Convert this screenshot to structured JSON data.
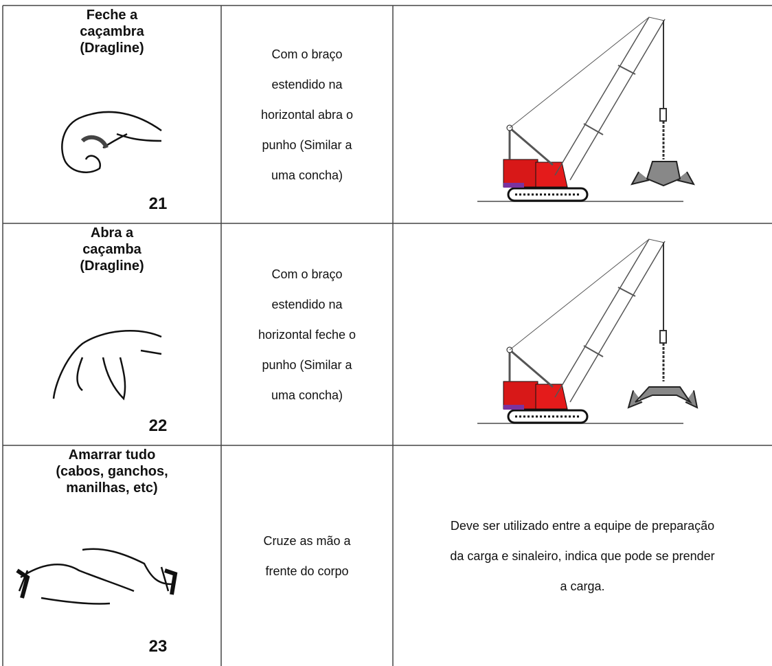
{
  "table": {
    "rows": [
      {
        "title_lines": [
          "Feche a",
          "caçambra",
          "(Dragline)"
        ],
        "number": "21",
        "description_lines": [
          "Com o braço",
          "estendido na",
          "horizontal abra o",
          "punho (Similar a",
          "uma concha)"
        ]
      },
      {
        "title_lines": [
          "Abra a",
          "caçamba",
          "(Dragline)"
        ],
        "number": "22",
        "description_lines": [
          "Com o braço",
          "estendido na",
          "horizontal feche o",
          "punho (Similar a",
          "uma concha)"
        ]
      },
      {
        "title_lines": [
          "Amarrar tudo",
          "(cabos, ganchos,",
          "manilhas, etc)"
        ],
        "number": "23",
        "description_lines": [
          "Cruze as mão a",
          "frente do corpo"
        ],
        "note_lines": [
          "Deve ser utilizado entre a equipe de preparação",
          "da carga e sinaleiro, indica que pode se prender",
          "a carga."
        ]
      }
    ]
  }
}
